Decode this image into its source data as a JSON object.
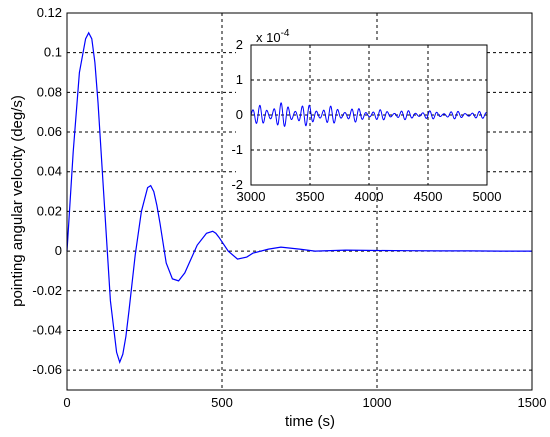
{
  "chart_data": [
    {
      "type": "line",
      "title": "",
      "xlabel": "time (s)",
      "ylabel": "pointing angular velocity (deg/s)",
      "xlim": [
        0,
        1500
      ],
      "ylim": [
        -0.07,
        0.12
      ],
      "xticks": [
        "0",
        "500",
        "1000",
        "1500"
      ],
      "yticks": [
        "-0.06",
        "-0.04",
        "-0.02",
        "0",
        "0.02",
        "0.04",
        "0.06",
        "0.08",
        "0.1",
        "0.12"
      ],
      "grid": true,
      "line_color": "#0000ff",
      "series": [
        {
          "x": [
            0,
            20,
            40,
            60,
            70,
            80,
            90,
            100,
            120,
            140,
            160,
            170,
            180,
            190,
            200,
            220,
            240,
            260,
            270,
            280,
            290,
            300,
            320,
            340,
            360,
            370,
            380,
            400,
            420,
            450,
            470,
            480,
            490,
            520,
            550,
            580,
            600,
            650,
            690,
            750,
            800,
            900,
            1000,
            1100,
            1200,
            1300,
            1400,
            1500
          ],
          "y": [
            0,
            0.05,
            0.09,
            0.107,
            0.11,
            0.107,
            0.095,
            0.075,
            0.025,
            -0.025,
            -0.051,
            -0.056,
            -0.052,
            -0.043,
            -0.03,
            -0.002,
            0.02,
            0.032,
            0.033,
            0.03,
            0.023,
            0.014,
            -0.006,
            -0.014,
            -0.015,
            -0.013,
            -0.011,
            -0.004,
            0.003,
            0.009,
            0.01,
            0.009,
            0.007,
            0.0,
            -0.004,
            -0.003,
            -0.001,
            0.001,
            0.002,
            0.001,
            0.0,
            0.0005,
            0.0003,
            0.0002,
            0.0001,
            0.0001,
            0.0,
            0.0
          ]
        }
      ]
    },
    {
      "type": "line",
      "title": "",
      "xlabel": "",
      "ylabel": "",
      "xlim": [
        3000,
        5000
      ],
      "ylim": [
        -2,
        2
      ],
      "xticks": [
        "3000",
        "3500",
        "4000",
        "4500",
        "5000"
      ],
      "yticks": [
        "-2",
        "-1",
        "0",
        "1",
        "2"
      ],
      "y_scale_exponent": "x 10",
      "y_scale_power": "-4",
      "grid": true,
      "line_color": "#0000ff",
      "series": [
        {
          "x_start": 3000,
          "x_end": 5000,
          "carrier_period": 60,
          "envelope": [
            [
              3000,
              0.15
            ],
            [
              3100,
              0.35
            ],
            [
              3300,
              0.35
            ],
            [
              3500,
              0.3
            ],
            [
              3700,
              0.25
            ],
            [
              3900,
              0.2
            ],
            [
              4100,
              0.15
            ],
            [
              4500,
              0.12
            ],
            [
              5000,
              0.1
            ]
          ]
        }
      ]
    }
  ]
}
